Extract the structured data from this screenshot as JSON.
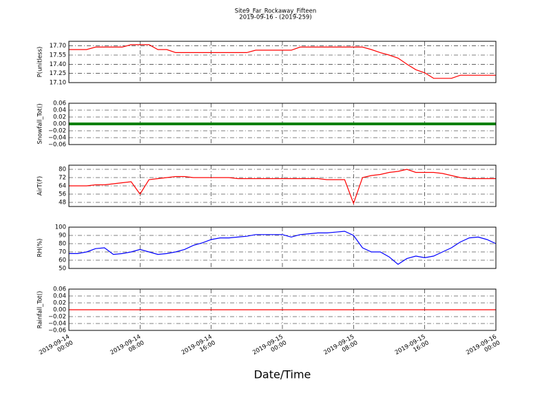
{
  "title": "Site9_Far_Rockaway_Fifteen",
  "subtitle": "2019-09-16 - (2019-259)",
  "x_label": "Date/Time",
  "grid": true,
  "x": [
    "2019-09-14 00:00",
    "2019-09-14 01:00",
    "2019-09-14 02:00",
    "2019-09-14 03:00",
    "2019-09-14 04:00",
    "2019-09-14 05:00",
    "2019-09-14 06:00",
    "2019-09-14 07:00",
    "2019-09-14 08:00",
    "2019-09-14 09:00",
    "2019-09-14 10:00",
    "2019-09-14 11:00",
    "2019-09-14 12:00",
    "2019-09-14 13:00",
    "2019-09-14 14:00",
    "2019-09-14 15:00",
    "2019-09-14 16:00",
    "2019-09-14 17:00",
    "2019-09-14 18:00",
    "2019-09-14 19:00",
    "2019-09-14 20:00",
    "2019-09-14 21:00",
    "2019-09-14 22:00",
    "2019-09-14 23:00",
    "2019-09-15 00:00",
    "2019-09-15 01:00",
    "2019-09-15 02:00",
    "2019-09-15 03:00",
    "2019-09-15 04:00",
    "2019-09-15 05:00",
    "2019-09-15 06:00",
    "2019-09-15 07:00",
    "2019-09-15 08:00",
    "2019-09-15 09:00",
    "2019-09-15 10:00",
    "2019-09-15 11:00",
    "2019-09-15 12:00",
    "2019-09-15 13:00",
    "2019-09-15 14:00",
    "2019-09-15 15:00",
    "2019-09-15 16:00",
    "2019-09-15 17:00",
    "2019-09-15 18:00",
    "2019-09-15 19:00",
    "2019-09-15 20:00",
    "2019-09-15 21:00",
    "2019-09-15 22:00",
    "2019-09-15 23:00",
    "2019-09-16 00:00"
  ],
  "xlim": [
    "2019-09-14 00:00",
    "2019-09-16 00:00"
  ],
  "xticks": [
    "2019-09-14 00:00",
    "2019-09-14 08:00",
    "2019-09-14 16:00",
    "2019-09-15 00:00",
    "2019-09-15 08:00",
    "2019-09-15 16:00",
    "2019-09-16 00:00"
  ],
  "chart_data": [
    {
      "type": "line",
      "y_label": "P(unitless)",
      "color": "#ff0000",
      "ylim": [
        17.1,
        17.775
      ],
      "yticks": [
        {
          "value": 17.1,
          "label": "17.10"
        },
        17.25,
        {
          "value": 17.4,
          "label": "17.40"
        },
        17.55,
        {
          "value": 17.7,
          "label": "17.70"
        }
      ],
      "values": [
        17.64,
        17.64,
        17.64,
        17.68,
        17.68,
        17.68,
        17.68,
        17.72,
        17.72,
        17.72,
        17.64,
        17.64,
        17.59,
        17.59,
        17.59,
        17.59,
        17.59,
        17.59,
        17.59,
        17.59,
        17.59,
        17.63,
        17.63,
        17.63,
        17.63,
        17.63,
        17.68,
        17.68,
        17.68,
        17.68,
        17.68,
        17.68,
        17.68,
        17.68,
        17.64,
        17.59,
        17.55,
        17.5,
        17.4,
        17.31,
        17.26,
        17.17,
        17.17,
        17.17,
        17.22,
        17.22,
        17.22,
        17.22,
        17.22
      ]
    },
    {
      "type": "line",
      "y_label": "Snowfall_Tot()",
      "color": "#008000",
      "markers": true,
      "ylim": [
        -0.06,
        0.06
      ],
      "yticks": [
        {
          "value": -0.06,
          "label": "−0.06"
        },
        {
          "value": -0.04,
          "label": "−0.04"
        },
        {
          "value": -0.02,
          "label": "−0.02"
        },
        {
          "value": 0,
          "label": "0.00"
        },
        0.02,
        0.04,
        0.06
      ],
      "values": [
        0,
        0,
        0,
        0,
        0,
        0,
        0,
        0,
        0,
        0,
        0,
        0,
        0,
        0,
        0,
        0,
        0,
        0,
        0,
        0,
        0,
        0,
        0,
        0,
        0,
        0,
        0,
        0,
        0,
        0,
        0,
        0,
        0,
        0,
        0,
        0,
        0,
        0,
        0,
        0,
        0,
        0,
        0,
        0,
        0,
        0,
        0,
        0,
        0
      ]
    },
    {
      "type": "line",
      "y_label": "AirT(F)",
      "color": "#ff0000",
      "ylim": [
        44,
        84
      ],
      "yticks": [
        48,
        56,
        64,
        72,
        80
      ],
      "values": [
        64,
        64,
        64,
        65,
        65,
        66,
        67,
        68,
        56,
        70,
        71,
        72,
        73,
        73,
        72,
        72,
        72,
        72,
        72,
        71,
        71,
        71,
        71,
        71,
        71,
        71,
        71,
        71,
        71,
        70,
        70,
        70,
        47,
        72,
        74,
        75,
        77,
        78,
        80,
        77,
        77,
        77,
        76,
        74,
        72,
        71,
        71,
        71,
        71
      ]
    },
    {
      "type": "line",
      "y_label": "RH(%)",
      "color": "#0000ff",
      "ylim": [
        50,
        100
      ],
      "yticks": [
        50,
        60,
        70,
        80,
        90,
        100
      ],
      "values": [
        68,
        68,
        70,
        74,
        75,
        67,
        68,
        70,
        73,
        70,
        67,
        68,
        70,
        73,
        78,
        81,
        85,
        87,
        87,
        88,
        89,
        91,
        91,
        91,
        91,
        88,
        91,
        92,
        93,
        93,
        94,
        95,
        90,
        75,
        70,
        70,
        64,
        55,
        62,
        65,
        63,
        65,
        70,
        75,
        82,
        87,
        88,
        85,
        80
      ]
    },
    {
      "type": "line",
      "y_label": "Rainfall_Tot()",
      "color": "#ff0000",
      "ylim": [
        -0.06,
        0.06
      ],
      "yticks": [
        {
          "value": -0.06,
          "label": "−0.06"
        },
        {
          "value": -0.04,
          "label": "−0.04"
        },
        {
          "value": -0.02,
          "label": "−0.02"
        },
        {
          "value": 0,
          "label": "0.00"
        },
        0.02,
        0.04,
        0.06
      ],
      "values": [
        0,
        0,
        0,
        0,
        0,
        0,
        0,
        0,
        0,
        0,
        0,
        0,
        0,
        0,
        0,
        0,
        0,
        0,
        0,
        0,
        0,
        0,
        0,
        0,
        0,
        0,
        0,
        0,
        0,
        0,
        0,
        0,
        0,
        0,
        0,
        0,
        0,
        0,
        0,
        0,
        0,
        0,
        0,
        0,
        0,
        0,
        0,
        0,
        0
      ]
    }
  ]
}
